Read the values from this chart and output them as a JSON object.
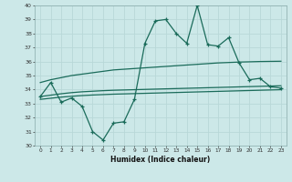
{
  "xlabel": "Humidex (Indice chaleur)",
  "ylabel": "",
  "bg_color": "#cce8e8",
  "grid_color": "#b8d8d8",
  "line_color": "#1a6b5a",
  "xlim": [
    -0.5,
    23.5
  ],
  "ylim": [
    30,
    40
  ],
  "xticks": [
    0,
    1,
    2,
    3,
    4,
    5,
    6,
    7,
    8,
    9,
    10,
    11,
    12,
    13,
    14,
    15,
    16,
    17,
    18,
    19,
    20,
    21,
    22,
    23
  ],
  "yticks": [
    30,
    31,
    32,
    33,
    34,
    35,
    36,
    37,
    38,
    39,
    40
  ],
  "main_y": [
    33.5,
    34.5,
    33.1,
    33.4,
    32.8,
    31.0,
    30.4,
    31.6,
    31.7,
    33.3,
    37.3,
    38.9,
    39.0,
    38.0,
    37.3,
    40.0,
    37.2,
    37.1,
    37.7,
    35.9,
    34.7,
    34.8,
    34.2,
    34.1
  ],
  "line_top_y": [
    34.5,
    34.7,
    34.85,
    35.0,
    35.1,
    35.2,
    35.3,
    35.4,
    35.45,
    35.5,
    35.55,
    35.6,
    35.65,
    35.7,
    35.75,
    35.8,
    35.85,
    35.9,
    35.93,
    35.96,
    35.98,
    36.0,
    36.01,
    36.02
  ],
  "line_mid_y": [
    33.5,
    33.6,
    33.7,
    33.78,
    33.84,
    33.88,
    33.92,
    33.95,
    33.97,
    33.99,
    34.01,
    34.03,
    34.05,
    34.07,
    34.09,
    34.11,
    34.13,
    34.15,
    34.17,
    34.19,
    34.21,
    34.23,
    34.25,
    34.27
  ],
  "line_bot_y": [
    33.3,
    33.38,
    33.46,
    33.52,
    33.57,
    33.61,
    33.64,
    33.67,
    33.69,
    33.71,
    33.73,
    33.75,
    33.77,
    33.79,
    33.81,
    33.83,
    33.85,
    33.87,
    33.89,
    33.91,
    33.93,
    33.95,
    33.97,
    33.99
  ]
}
